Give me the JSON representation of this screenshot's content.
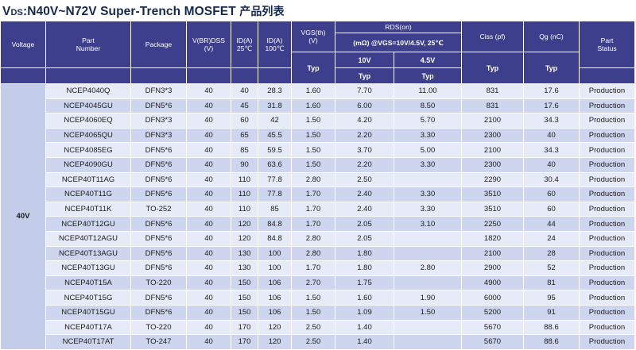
{
  "title": {
    "prefix_v": "V",
    "prefix_ds": "DS",
    "main": ":N40V~N72V Super-Trench MOSFET ",
    "cjk": "产品列表"
  },
  "headers": {
    "voltage": "Voltage",
    "part_number": "Part\nNumber",
    "package": "Package",
    "vbrdss": "V(BR)DSS\n(V)",
    "id25": "ID(A)\n25℃",
    "id100": "ID(A)\n100℃",
    "vgs": "VGS(th)\n(V)",
    "rds": "RDS(on)",
    "rds_cond": "(mΩ) @VGS=10V/4.5V, 25℃",
    "rds_10v": "10V",
    "rds_45v": "4.5V",
    "ciss": "Ciss (pf)",
    "qg": "Qg (nC)",
    "status": "Part\nStatus",
    "typ": "Typ"
  },
  "voltage_group": "40V",
  "rows": [
    [
      "NCEP4040Q",
      "DFN3*3",
      "40",
      "40",
      "28.3",
      "1.60",
      "7.70",
      "11.00",
      "831",
      "17.6",
      "Production"
    ],
    [
      "NCEP4045GU",
      "DFN5*6",
      "40",
      "45",
      "31.8",
      "1.60",
      "6.00",
      "8.50",
      "831",
      "17.6",
      "Production"
    ],
    [
      "NCEP4060EQ",
      "DFN3*3",
      "40",
      "60",
      "42",
      "1.50",
      "4.20",
      "5.70",
      "2100",
      "34.3",
      "Production"
    ],
    [
      "NCEP4065QU",
      "DFN3*3",
      "40",
      "65",
      "45.5",
      "1.50",
      "2.20",
      "3.30",
      "2300",
      "40",
      "Production"
    ],
    [
      "NCEP4085EG",
      "DFN5*6",
      "40",
      "85",
      "59.5",
      "1.50",
      "3.70",
      "5.00",
      "2100",
      "34.3",
      "Production"
    ],
    [
      "NCEP4090GU",
      "DFN5*6",
      "40",
      "90",
      "63.6",
      "1.50",
      "2.20",
      "3.30",
      "2300",
      "40",
      "Production"
    ],
    [
      "NCEP40T11AG",
      "DFN5*6",
      "40",
      "110",
      "77.8",
      "2.80",
      "2.50",
      "",
      "2290",
      "30.4",
      "Production"
    ],
    [
      "NCEP40T11G",
      "DFN5*6",
      "40",
      "110",
      "77.8",
      "1.70",
      "2.40",
      "3.30",
      "3510",
      "60",
      "Production"
    ],
    [
      "NCEP40T11K",
      "TO-252",
      "40",
      "110",
      "85",
      "1.70",
      "2.40",
      "3.30",
      "3510",
      "60",
      "Production"
    ],
    [
      "NCEP40T12GU",
      "DFN5*6",
      "40",
      "120",
      "84.8",
      "1.70",
      "2.05",
      "3.10",
      "2250",
      "44",
      "Production"
    ],
    [
      "NCEP40T12AGU",
      "DFN5*6",
      "40",
      "120",
      "84.8",
      "2.80",
      "2.05",
      "",
      "1820",
      "24",
      "Production"
    ],
    [
      "NCEP40T13AGU",
      "DFN5*6",
      "40",
      "130",
      "100",
      "2.80",
      "1.80",
      "",
      "2100",
      "28",
      "Production"
    ],
    [
      "NCEP40T13GU",
      "DFN5*6",
      "40",
      "130",
      "100",
      "1.70",
      "1.80",
      "2.80",
      "2900",
      "52",
      "Production"
    ],
    [
      "NCEP40T15A",
      "TO-220",
      "40",
      "150",
      "106",
      "2.70",
      "1.75",
      "",
      "4900",
      "81",
      "Production"
    ],
    [
      "NCEP40T15G",
      "DFN5*6",
      "40",
      "150",
      "106",
      "1.50",
      "1.60",
      "1.90",
      "6000",
      "95",
      "Production"
    ],
    [
      "NCEP40T15GU",
      "DFN5*6",
      "40",
      "150",
      "106",
      "1.50",
      "1.09",
      "1.50",
      "5200",
      "91",
      "Production"
    ],
    [
      "NCEP40T17A",
      "TO-220",
      "40",
      "170",
      "120",
      "2.50",
      "1.40",
      "",
      "5670",
      "88.6",
      "Production"
    ],
    [
      "NCEP40T17AT",
      "TO-247",
      "40",
      "170",
      "120",
      "2.50",
      "1.40",
      "",
      "5670",
      "88.6",
      "Production"
    ]
  ]
}
